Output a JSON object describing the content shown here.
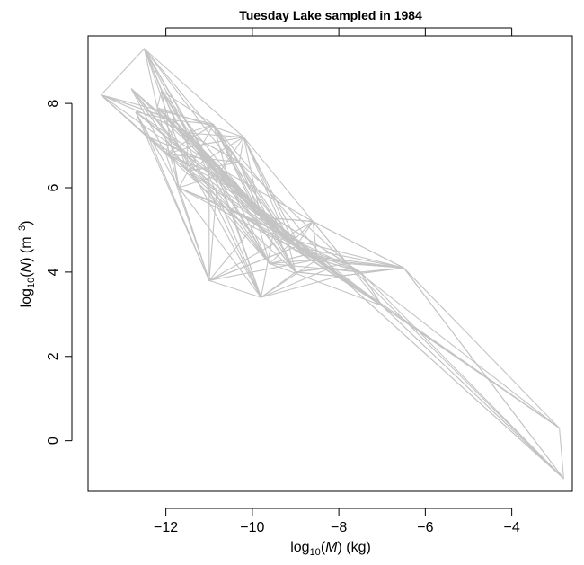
{
  "chart_data": {
    "type": "line",
    "title": "Tuesday Lake sampled in 1984",
    "xlabel": {
      "prefix": "log",
      "sub": "10",
      "open": "(",
      "var": "M",
      "close": ")",
      "unit": " (kg)"
    },
    "ylabel": {
      "prefix": "log",
      "sub": "10",
      "open": "(",
      "var": "N",
      "close": ")",
      "unit_open": " (m",
      "unit_sup": "−3",
      "unit_close": ")"
    },
    "xlim": [
      -13.8,
      -2.6
    ],
    "ylim": [
      -1.2,
      9.6
    ],
    "x_ticks": [
      -12,
      -10,
      -8,
      -6,
      -4
    ],
    "x_tick_labels": [
      "−12",
      "−10",
      "−8",
      "−6",
      "−4"
    ],
    "y_ticks": [
      0,
      2,
      4,
      6,
      8
    ],
    "y_tick_labels": [
      "0",
      "2",
      "4",
      "6",
      "8"
    ],
    "top_axis_ticks": [
      -12,
      -10,
      -8,
      -6,
      -4
    ],
    "grid": false,
    "line_color": "#c4c4c4",
    "nodes": [
      [
        -13.5,
        8.2
      ],
      [
        -12.5,
        9.3
      ],
      [
        -12.8,
        8.35
      ],
      [
        -12.7,
        7.8
      ],
      [
        -12.2,
        7.9
      ],
      [
        -11.8,
        7.6
      ],
      [
        -11.5,
        7.3
      ],
      [
        -11.3,
        7.0
      ],
      [
        -11.0,
        6.6
      ],
      [
        -10.8,
        6.3
      ],
      [
        -10.5,
        6.0
      ],
      [
        -10.2,
        7.2
      ],
      [
        -10.0,
        5.6
      ],
      [
        -9.8,
        5.3
      ],
      [
        -9.5,
        5.0
      ],
      [
        -9.2,
        4.8
      ],
      [
        -9.0,
        4.6
      ],
      [
        -8.8,
        4.4
      ],
      [
        -8.5,
        4.3
      ],
      [
        -8.2,
        4.1
      ],
      [
        -8.0,
        3.9
      ],
      [
        -7.8,
        4.2
      ],
      [
        -7.5,
        4.0
      ],
      [
        -11.0,
        3.8
      ],
      [
        -9.8,
        3.4
      ],
      [
        -9.0,
        4.0
      ],
      [
        -6.5,
        4.1
      ],
      [
        -7.0,
        3.2
      ],
      [
        -2.9,
        0.3
      ],
      [
        -2.8,
        -0.9
      ],
      [
        -12.0,
        6.8
      ],
      [
        -11.5,
        6.4
      ],
      [
        -10.5,
        5.5
      ],
      [
        -12.4,
        7.2
      ],
      [
        -11.7,
        6.0
      ],
      [
        -10.9,
        7.5
      ],
      [
        -10.3,
        6.6
      ],
      [
        -9.6,
        4.2
      ],
      [
        -8.6,
        5.2
      ],
      [
        -12.1,
        8.3
      ]
    ],
    "series": [
      {
        "values": [
          [
            -13.5,
            8.2
          ],
          [
            -11.5,
            7.3
          ],
          [
            -10.0,
            5.6
          ],
          [
            -8.0,
            3.9
          ],
          [
            -6.5,
            4.1
          ],
          [
            -2.8,
            -0.9
          ]
        ]
      },
      {
        "values": [
          [
            -12.5,
            9.3
          ],
          [
            -11.0,
            6.6
          ],
          [
            -9.5,
            5.0
          ],
          [
            -8.2,
            4.1
          ],
          [
            -2.9,
            0.3
          ],
          [
            -2.8,
            -0.9
          ]
        ]
      },
      {
        "values": [
          [
            -13.5,
            8.2
          ],
          [
            -12.5,
            9.3
          ],
          [
            -10.8,
            6.3
          ],
          [
            -11.0,
            3.8
          ],
          [
            -9.0,
            4.6
          ],
          [
            -7.5,
            4.0
          ]
        ]
      },
      {
        "values": [
          [
            -12.8,
            8.35
          ],
          [
            -11.3,
            7.0
          ],
          [
            -9.8,
            3.4
          ],
          [
            -8.5,
            4.3
          ],
          [
            -6.5,
            4.1
          ],
          [
            -2.9,
            0.3
          ]
        ]
      },
      {
        "values": [
          [
            -12.7,
            7.8
          ],
          [
            -10.5,
            6.0
          ],
          [
            -9.2,
            4.8
          ],
          [
            -7.0,
            3.2
          ],
          [
            -2.8,
            -0.9
          ]
        ]
      },
      {
        "values": [
          [
            -12.2,
            7.9
          ],
          [
            -10.2,
            7.2
          ],
          [
            -8.8,
            4.4
          ],
          [
            -6.5,
            4.1
          ]
        ]
      },
      {
        "values": [
          [
            -12.5,
            9.3
          ],
          [
            -11.8,
            7.6
          ],
          [
            -10.0,
            5.6
          ],
          [
            -7.8,
            4.2
          ],
          [
            -6.5,
            4.1
          ],
          [
            -2.8,
            -0.9
          ]
        ]
      },
      {
        "values": [
          [
            -13.5,
            8.2
          ],
          [
            -12.0,
            6.8
          ],
          [
            -11.0,
            3.8
          ],
          [
            -9.8,
            3.4
          ],
          [
            -8.0,
            3.9
          ],
          [
            -2.9,
            0.3
          ]
        ]
      },
      {
        "values": [
          [
            -12.4,
            7.2
          ],
          [
            -11.5,
            6.4
          ],
          [
            -9.6,
            4.2
          ],
          [
            -8.6,
            5.2
          ],
          [
            -6.5,
            4.1
          ]
        ]
      },
      {
        "values": [
          [
            -12.1,
            8.3
          ],
          [
            -10.9,
            7.5
          ],
          [
            -10.3,
            6.6
          ],
          [
            -9.0,
            4.0
          ],
          [
            -8.2,
            4.1
          ],
          [
            -2.8,
            -0.9
          ]
        ]
      },
      {
        "values": [
          [
            -12.7,
            7.8
          ],
          [
            -11.7,
            6.0
          ],
          [
            -10.5,
            5.5
          ],
          [
            -9.0,
            4.6
          ],
          [
            -7.0,
            3.2
          ],
          [
            -2.9,
            0.3
          ]
        ]
      },
      {
        "values": [
          [
            -12.8,
            8.35
          ],
          [
            -12.0,
            6.8
          ],
          [
            -10.8,
            6.3
          ],
          [
            -9.5,
            5.0
          ],
          [
            -8.0,
            3.9
          ],
          [
            -6.5,
            4.1
          ]
        ]
      },
      {
        "values": [
          [
            -12.2,
            7.9
          ],
          [
            -11.3,
            7.0
          ],
          [
            -10.2,
            7.2
          ],
          [
            -9.8,
            5.3
          ],
          [
            -8.5,
            4.3
          ],
          [
            -7.5,
            4.0
          ],
          [
            -2.8,
            -0.9
          ]
        ]
      },
      {
        "values": [
          [
            -13.5,
            8.2
          ],
          [
            -11.8,
            7.6
          ],
          [
            -10.5,
            6.0
          ],
          [
            -9.6,
            4.2
          ],
          [
            -8.8,
            4.4
          ],
          [
            -6.5,
            4.1
          ]
        ]
      },
      {
        "values": [
          [
            -12.5,
            9.3
          ],
          [
            -12.1,
            8.3
          ],
          [
            -11.5,
            7.3
          ],
          [
            -10.9,
            7.5
          ],
          [
            -9.8,
            5.3
          ],
          [
            -9.2,
            4.8
          ],
          [
            -8.0,
            3.9
          ]
        ]
      },
      {
        "values": [
          [
            -12.4,
            7.2
          ],
          [
            -11.0,
            6.6
          ],
          [
            -10.0,
            5.6
          ],
          [
            -9.0,
            4.0
          ],
          [
            -7.8,
            4.2
          ],
          [
            -2.9,
            0.3
          ]
        ]
      },
      {
        "values": [
          [
            -11.7,
            6.0
          ],
          [
            -11.0,
            3.8
          ],
          [
            -9.0,
            4.6
          ],
          [
            -8.6,
            5.2
          ],
          [
            -7.0,
            3.2
          ],
          [
            -2.8,
            -0.9
          ]
        ]
      },
      {
        "values": [
          [
            -12.0,
            6.8
          ],
          [
            -10.3,
            6.6
          ],
          [
            -9.5,
            5.0
          ],
          [
            -8.2,
            4.1
          ],
          [
            -7.5,
            4.0
          ],
          [
            -6.5,
            4.1
          ]
        ]
      },
      {
        "values": [
          [
            -12.8,
            8.35
          ],
          [
            -11.5,
            6.4
          ],
          [
            -10.5,
            5.5
          ],
          [
            -9.8,
            3.4
          ],
          [
            -9.0,
            4.0
          ],
          [
            -8.0,
            3.9
          ],
          [
            -2.9,
            0.3
          ]
        ]
      },
      {
        "values": [
          [
            -12.7,
            7.8
          ],
          [
            -11.8,
            7.6
          ],
          [
            -11.3,
            7.0
          ],
          [
            -10.8,
            6.3
          ],
          [
            -10.2,
            7.2
          ],
          [
            -9.2,
            4.8
          ],
          [
            -6.5,
            4.1
          ]
        ]
      },
      {
        "values": [
          [
            -12.1,
            8.3
          ],
          [
            -11.7,
            6.0
          ],
          [
            -10.9,
            7.5
          ],
          [
            -10.0,
            5.6
          ],
          [
            -8.8,
            4.4
          ],
          [
            -7.8,
            4.2
          ],
          [
            -2.8,
            -0.9
          ]
        ]
      },
      {
        "values": [
          [
            -13.5,
            8.2
          ],
          [
            -12.4,
            7.2
          ],
          [
            -11.0,
            6.6
          ],
          [
            -9.6,
            4.2
          ],
          [
            -8.5,
            4.3
          ],
          [
            -7.0,
            3.2
          ],
          [
            -2.9,
            0.3
          ]
        ]
      },
      {
        "values": [
          [
            -12.5,
            9.3
          ],
          [
            -12.2,
            7.9
          ],
          [
            -11.5,
            7.3
          ],
          [
            -10.3,
            6.6
          ],
          [
            -9.8,
            5.3
          ],
          [
            -8.6,
            5.2
          ],
          [
            -6.5,
            4.1
          ]
        ]
      },
      {
        "values": [
          [
            -12.0,
            6.8
          ],
          [
            -11.3,
            7.0
          ],
          [
            -10.5,
            6.0
          ],
          [
            -9.5,
            5.0
          ],
          [
            -9.0,
            4.6
          ],
          [
            -8.2,
            4.1
          ],
          [
            -2.8,
            -0.9
          ]
        ]
      }
    ]
  }
}
